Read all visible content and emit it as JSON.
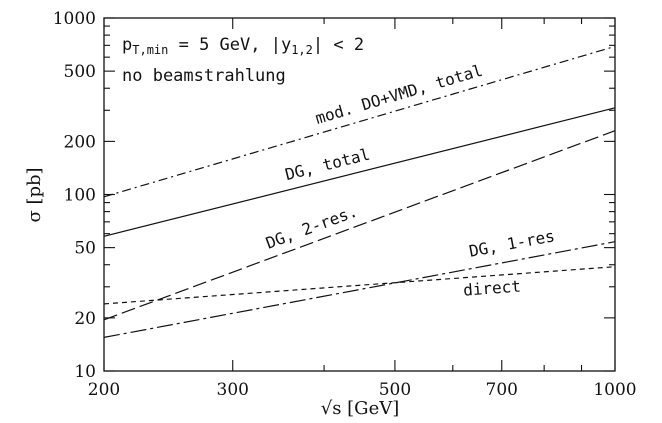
{
  "chart_data": {
    "type": "line",
    "xlabel": "√s [GeV]",
    "ylabel": "σ [pb]",
    "x_scale": "log",
    "y_scale": "log",
    "xlim": [
      200,
      1000
    ],
    "ylim": [
      10,
      1000
    ],
    "x_ticks": [
      200,
      300,
      500,
      700,
      1000
    ],
    "x_tick_labels": [
      "200",
      "300",
      "500",
      "700",
      "1000"
    ],
    "y_ticks": [
      10,
      20,
      50,
      100,
      200,
      500,
      1000
    ],
    "y_tick_labels": [
      "10",
      "20",
      "50",
      "100",
      "200",
      "500",
      "1000"
    ],
    "grid": false,
    "annotations": [
      "p_T,min = 5 GeV, |y_1,2| < 2",
      "no beamstrahlung"
    ],
    "series": [
      {
        "label": "mod. DO+VMD, total",
        "style": "dash-dot",
        "x": [
          200,
          1000
        ],
        "y": [
          97,
          690
        ]
      },
      {
        "label": "DG, total",
        "style": "solid",
        "x": [
          200,
          1000
        ],
        "y": [
          58,
          310
        ]
      },
      {
        "label": "DG, 2-res.",
        "style": "long-dash",
        "x": [
          200,
          1000
        ],
        "y": [
          19.5,
          230
        ]
      },
      {
        "label": "DG, 1-res",
        "style": "dash-dot-long",
        "x": [
          200,
          1000
        ],
        "y": [
          15.5,
          54
        ]
      },
      {
        "label": "direct",
        "style": "short-dash",
        "x": [
          200,
          1000
        ],
        "y": [
          24,
          39
        ]
      }
    ]
  }
}
